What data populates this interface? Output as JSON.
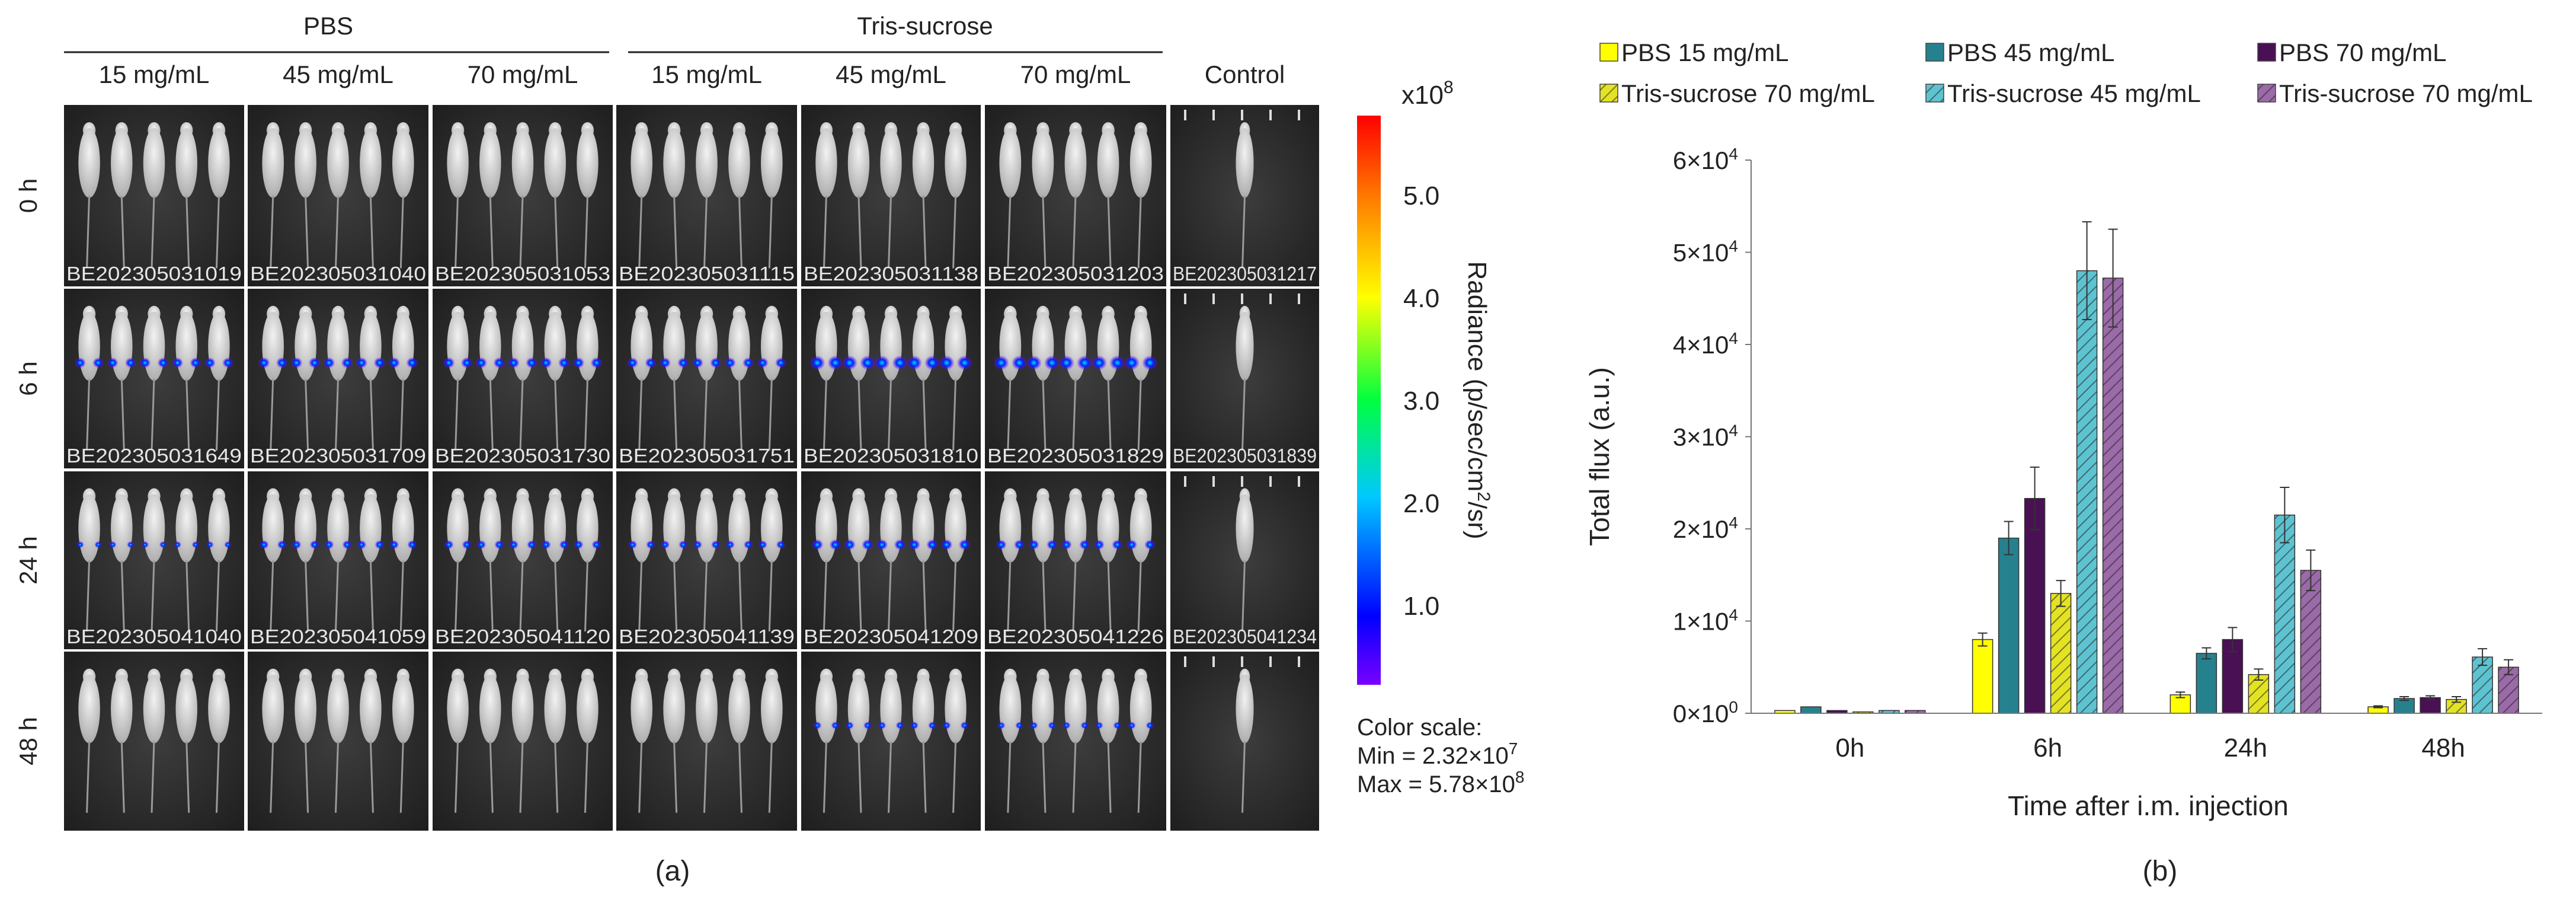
{
  "panel_a": {
    "group_headers": [
      "PBS",
      "Tris-sucrose"
    ],
    "columns": [
      "15 mg/mL",
      "45 mg/mL",
      "70 mg/mL",
      "15 mg/mL",
      "45 mg/mL",
      "70 mg/mL",
      "Control"
    ],
    "rows": [
      "0 h",
      "6 h",
      "24 h",
      "48 h"
    ],
    "image_ids": [
      [
        "BE202305031019",
        "BE202305031040",
        "BE202305031053",
        "BE202305031115",
        "BE202305031138",
        "BE202305031203",
        "BE202305031217"
      ],
      [
        "BE202305031649",
        "BE202305031709",
        "BE202305031730",
        "BE202305031751",
        "BE202305031810",
        "BE202305031829",
        "BE202305031839"
      ],
      [
        "BE202305041040",
        "BE202305041059",
        "BE202305041120",
        "BE202305041139",
        "BE202305041209",
        "BE202305041226",
        "BE202305041234"
      ],
      [
        "",
        "",
        "",
        "",
        "",
        "",
        ""
      ]
    ],
    "signal_levels": [
      [
        0,
        0,
        0,
        0,
        0,
        0,
        0
      ],
      [
        0.45,
        0.5,
        0.5,
        0.45,
        0.85,
        0.85,
        0
      ],
      [
        0.1,
        0.3,
        0.3,
        0.25,
        0.5,
        0.4,
        0
      ],
      [
        0,
        0,
        0,
        0,
        0.18,
        0.15,
        0
      ]
    ],
    "colorbar": {
      "multiplier": "x10",
      "multiplier_exp": "8",
      "ticks": [
        "5.0",
        "4.0",
        "3.0",
        "2.0",
        "1.0"
      ],
      "tick_values": [
        5.0,
        4.0,
        3.0,
        2.0,
        1.0
      ],
      "min_value": 0.232,
      "max_value": 5.78,
      "title_parts": [
        "Radiance (p/sec/cm",
        "2",
        "/sr)"
      ],
      "colors": [
        "#7a00ff",
        "#0000ff",
        "#00c8ff",
        "#00ff40",
        "#ffff00",
        "#ff8000",
        "#ff0000"
      ]
    },
    "color_scale": {
      "heading": "Color scale:",
      "min_text": "Min = 2.32×10",
      "min_exp": "7",
      "max_text": "Max = 5.78×10",
      "max_exp": "8"
    },
    "caption": "(a)"
  },
  "chart_data": {
    "type": "bar",
    "categories": [
      "0h",
      "6h",
      "24h",
      "48h"
    ],
    "series": [
      {
        "name": "PBS 15 mg/mL",
        "values": [
          300,
          8000,
          2000,
          700
        ],
        "errors": [
          0,
          700,
          300,
          100
        ],
        "color": "#ffff00",
        "hatch": false
      },
      {
        "name": "PBS 45 mg/mL",
        "values": [
          700,
          19000,
          6500,
          1600
        ],
        "errors": [
          0,
          1800,
          600,
          200
        ],
        "color": "#26818f",
        "hatch": false
      },
      {
        "name": "PBS 70 mg/mL",
        "values": [
          300,
          23300,
          8000,
          1700
        ],
        "errors": [
          0,
          3400,
          1300,
          200
        ],
        "color": "#4a1054",
        "hatch": false
      },
      {
        "name": "Tris-sucrose 70 mg/mL",
        "values": [
          150,
          13000,
          4200,
          1500
        ],
        "errors": [
          0,
          1400,
          600,
          300
        ],
        "color": "#e3e324",
        "hatch": true
      },
      {
        "name": "Tris-sucrose 45 mg/mL",
        "values": [
          300,
          48000,
          21500,
          6100
        ],
        "errors": [
          0,
          5300,
          3000,
          900
        ],
        "color": "#5ec3d1",
        "hatch": true
      },
      {
        "name": "Tris-sucrose 70 mg/mL",
        "values": [
          300,
          47200,
          15500,
          5000
        ],
        "errors": [
          0,
          5300,
          2200,
          800
        ],
        "color": "#9b6aa8",
        "hatch": true
      }
    ],
    "ylim": [
      0,
      60000
    ],
    "yticks": [
      0,
      10000,
      20000,
      30000,
      40000,
      50000,
      60000
    ],
    "ytick_mantissas": [
      "0",
      "1",
      "2",
      "3",
      "4",
      "5",
      "6"
    ],
    "ytick_exps": [
      "0",
      "4",
      "4",
      "4",
      "4",
      "4",
      "4"
    ],
    "ytick_mid": "×10",
    "xlabel": "Time after i.m. injection",
    "ylabel": "Total flux (a.u.)",
    "legend_position": "top",
    "grid": false,
    "caption": "(b)"
  }
}
